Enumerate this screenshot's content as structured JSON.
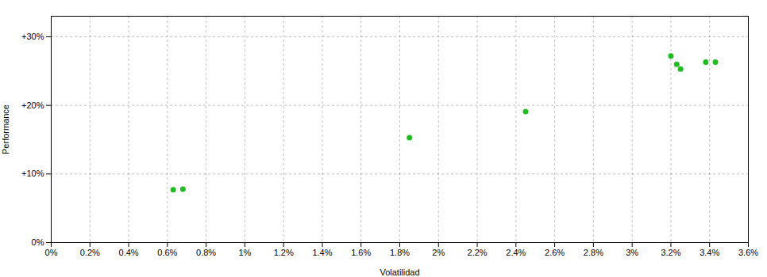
{
  "chart_data": {
    "type": "scatter",
    "xlabel": "Volatilidad",
    "ylabel": "Performance",
    "x": [
      0.0063,
      0.0068,
      0.0185,
      0.0245,
      0.032,
      0.0323,
      0.0325,
      0.0338,
      0.0343
    ],
    "values": [
      0.077,
      0.078,
      0.153,
      0.191,
      0.272,
      0.26,
      0.253,
      0.263,
      0.263
    ],
    "color": "#22bb22",
    "marker": "circle",
    "xlim": [
      0.0,
      0.036
    ],
    "ylim": [
      0.0,
      0.33
    ],
    "xticks": [
      {
        "value": 0.0,
        "label": "0%"
      },
      {
        "value": 0.002,
        "label": "0.2%"
      },
      {
        "value": 0.004,
        "label": "0.4%"
      },
      {
        "value": 0.006,
        "label": "0.6%"
      },
      {
        "value": 0.008,
        "label": "0.8%"
      },
      {
        "value": 0.01,
        "label": "1%"
      },
      {
        "value": 0.012,
        "label": "1.2%"
      },
      {
        "value": 0.014,
        "label": "1.4%"
      },
      {
        "value": 0.016,
        "label": "1.6%"
      },
      {
        "value": 0.018,
        "label": "1.8%"
      },
      {
        "value": 0.02,
        "label": "2%"
      },
      {
        "value": 0.022,
        "label": "2.2%"
      },
      {
        "value": 0.024,
        "label": "2.4%"
      },
      {
        "value": 0.026,
        "label": "2.6%"
      },
      {
        "value": 0.028,
        "label": "2.8%"
      },
      {
        "value": 0.03,
        "label": "3%"
      },
      {
        "value": 0.032,
        "label": "3.2%"
      },
      {
        "value": 0.034,
        "label": "3.4%"
      },
      {
        "value": 0.036,
        "label": "3.6%"
      }
    ],
    "yticks": [
      {
        "value": 0.0,
        "label": "0%"
      },
      {
        "value": 0.1,
        "label": "+10%"
      },
      {
        "value": 0.2,
        "label": "+20%"
      },
      {
        "value": 0.3,
        "label": "+30%"
      }
    ],
    "grid": true
  }
}
